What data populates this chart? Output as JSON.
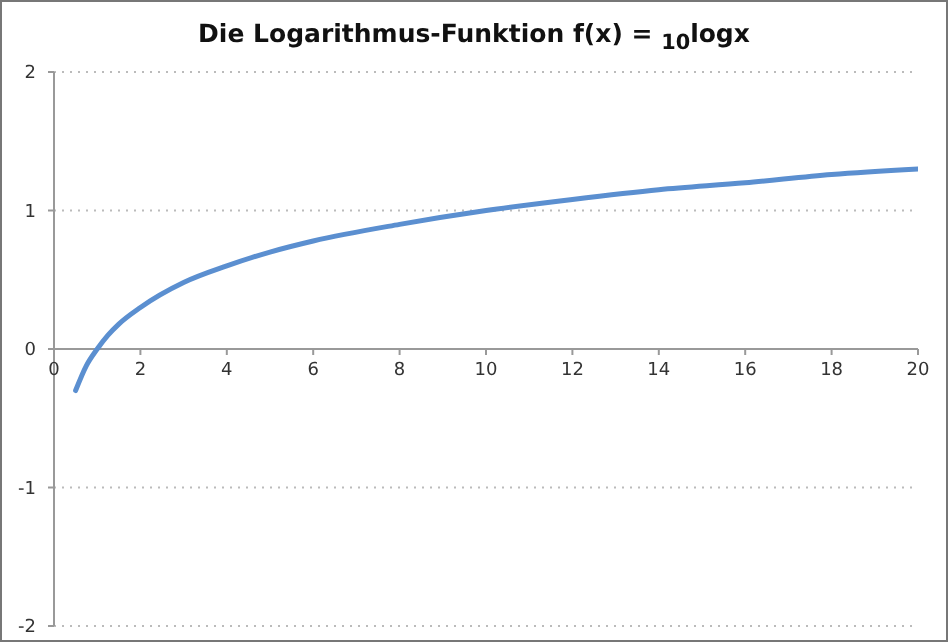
{
  "chart_data": {
    "type": "line",
    "title": "Die Logarithmus-Funktion f(x) = $_{10}$logx",
    "x": [
      0.5,
      0.75,
      1,
      1.25,
      1.5,
      2,
      3,
      4,
      5,
      6,
      8,
      10,
      12,
      14,
      16,
      18,
      20
    ],
    "series": [
      {
        "color": "#5b8fd0",
        "values": [
          -0.3,
          -0.12,
          0,
          0.1,
          0.18,
          0.3,
          0.48,
          0.6,
          0.7,
          0.78,
          0.9,
          1,
          1.08,
          1.15,
          1.2,
          1.26,
          1.3
        ]
      }
    ],
    "xlim": [
      0,
      20
    ],
    "xticks": [
      0,
      2,
      4,
      6,
      8,
      10,
      12,
      14,
      16,
      18,
      20
    ],
    "ylim": [
      -2,
      2
    ],
    "yticks": [
      -2,
      -1,
      0,
      1,
      2
    ],
    "grid": "y",
    "marker": "none",
    "line_style": "solid"
  }
}
